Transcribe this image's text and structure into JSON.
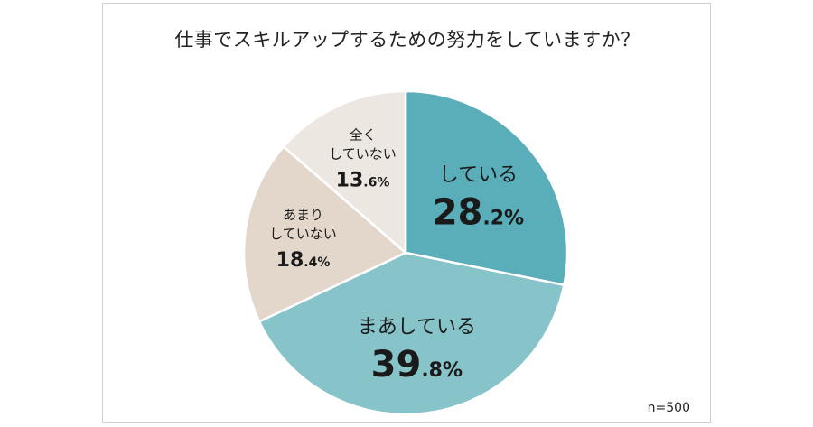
{
  "title": "仕事でスキルアップするための努力をしていますか？",
  "sample_note": "n=500",
  "chart_data": {
    "type": "pie",
    "title": "仕事でスキルアップするための努力をしていますか？",
    "unit": "%",
    "slices": [
      {
        "label_lines": [
          "している"
        ],
        "value": 28.2,
        "num": "28",
        "dec": ".2%",
        "color": "#5aaeb9",
        "big": true
      },
      {
        "label_lines": [
          "まあしている"
        ],
        "value": 39.8,
        "num": "39",
        "dec": ".8%",
        "color": "#86c4ca",
        "big": true
      },
      {
        "label_lines": [
          "あまり",
          "していない"
        ],
        "value": 18.4,
        "num": "18",
        "dec": ".4%",
        "color": "#e2d7ca",
        "big": false
      },
      {
        "label_lines": [
          "全く",
          "していない"
        ],
        "value": 13.6,
        "num": "13",
        "dec": ".6%",
        "color": "#ede7e1",
        "big": false
      }
    ]
  }
}
